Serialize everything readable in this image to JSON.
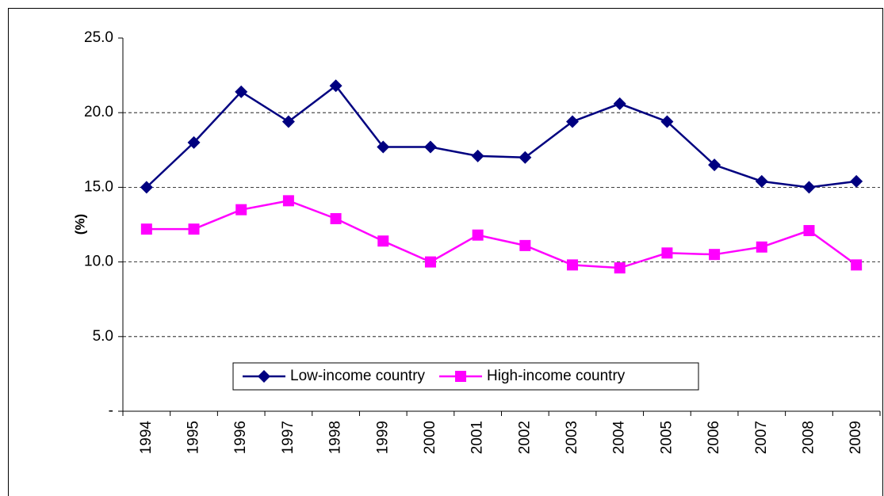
{
  "chart_data": {
    "type": "line",
    "y_label": "(%)",
    "categories": [
      "1994",
      "1995",
      "1996",
      "1997",
      "1998",
      "1999",
      "2000",
      "2001",
      "2002",
      "2003",
      "2004",
      "2005",
      "2006",
      "2007",
      "2008",
      "2009"
    ],
    "series": [
      {
        "name": "Low-income country",
        "color": "#000080",
        "marker": "diamond",
        "values": [
          15.0,
          18.0,
          21.4,
          19.4,
          21.8,
          17.7,
          17.7,
          17.1,
          17.0,
          19.4,
          20.6,
          19.4,
          16.5,
          15.4,
          15.0,
          15.4
        ]
      },
      {
        "name": "High-income country",
        "color": "#ff00ff",
        "marker": "square",
        "values": [
          12.2,
          12.2,
          13.5,
          14.1,
          12.9,
          11.4,
          10.0,
          11.8,
          11.1,
          9.8,
          9.6,
          10.6,
          10.5,
          11.0,
          12.1,
          9.8
        ]
      }
    ],
    "ylim": [
      0,
      25
    ],
    "yticks": [
      {
        "value": 0,
        "label": "-"
      },
      {
        "value": 5,
        "label": "5.0"
      },
      {
        "value": 10,
        "label": "10.0"
      },
      {
        "value": 15,
        "label": "15.0"
      },
      {
        "value": 20,
        "label": "20.0"
      },
      {
        "value": 25,
        "label": "25.0"
      }
    ],
    "grid": true,
    "legend": "lower center"
  }
}
